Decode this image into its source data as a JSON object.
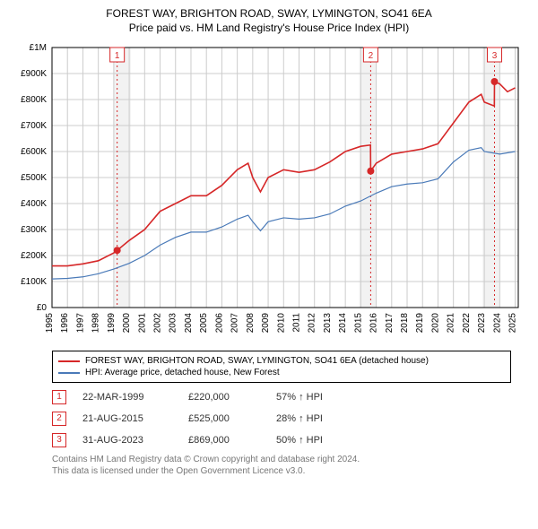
{
  "title_line1": "FOREST WAY, BRIGHTON ROAD, SWAY, LYMINGTON, SO41 6EA",
  "title_line2": "Price paid vs. HM Land Registry's House Price Index (HPI)",
  "title_fontsize": 12,
  "chart": {
    "background_color": "#ffffff",
    "grid_color": "#cccccc",
    "band_color": "#e8e8e8",
    "band_opacity": 0.55,
    "bands_x": [
      [
        1999.0,
        2000.1
      ],
      [
        2014.9,
        2016.0
      ],
      [
        2022.9,
        2024.0
      ]
    ],
    "axis_color": "#000000",
    "y_axis_label_prefix": "£",
    "y_ticks": [
      0,
      100000,
      200000,
      300000,
      400000,
      500000,
      600000,
      700000,
      800000,
      900000,
      1000000
    ],
    "y_tick_labels": [
      "£0",
      "£100K",
      "£200K",
      "£300K",
      "£400K",
      "£500K",
      "£600K",
      "£700K",
      "£800K",
      "£900K",
      "£1M"
    ],
    "ylim": [
      0,
      1000000
    ],
    "x_ticks": [
      1995,
      1996,
      1997,
      1998,
      1999,
      2000,
      2001,
      2002,
      2003,
      2004,
      2005,
      2006,
      2007,
      2008,
      2009,
      2010,
      2011,
      2012,
      2013,
      2014,
      2015,
      2016,
      2017,
      2018,
      2019,
      2020,
      2021,
      2022,
      2023,
      2024,
      2025
    ],
    "xlim": [
      1995,
      2025.2
    ],
    "series": [
      {
        "name": "price_paid",
        "label": "FOREST WAY, BRIGHTON ROAD, SWAY, LYMINGTON, SO41 6EA (detached house)",
        "color": "#d62728",
        "width": 1.6,
        "data": [
          [
            1995,
            160000
          ],
          [
            1996,
            160000
          ],
          [
            1997,
            168000
          ],
          [
            1998,
            180000
          ],
          [
            1999,
            210000
          ],
          [
            1999.22,
            220000
          ],
          [
            2000,
            258000
          ],
          [
            2001,
            300000
          ],
          [
            2002,
            370000
          ],
          [
            2003,
            400000
          ],
          [
            2004,
            430000
          ],
          [
            2005,
            430000
          ],
          [
            2006,
            470000
          ],
          [
            2007,
            530000
          ],
          [
            2007.7,
            555000
          ],
          [
            2008,
            500000
          ],
          [
            2008.5,
            445000
          ],
          [
            2009,
            500000
          ],
          [
            2010,
            530000
          ],
          [
            2011,
            520000
          ],
          [
            2012,
            530000
          ],
          [
            2013,
            560000
          ],
          [
            2014,
            600000
          ],
          [
            2015,
            620000
          ],
          [
            2015.63,
            625000
          ],
          [
            2015.64,
            525000
          ],
          [
            2016,
            555000
          ],
          [
            2017,
            590000
          ],
          [
            2018,
            600000
          ],
          [
            2019,
            610000
          ],
          [
            2020,
            630000
          ],
          [
            2021,
            710000
          ],
          [
            2022,
            790000
          ],
          [
            2022.8,
            820000
          ],
          [
            2023,
            790000
          ],
          [
            2023.65,
            775000
          ],
          [
            2023.66,
            869000
          ],
          [
            2024,
            860000
          ],
          [
            2024.5,
            830000
          ],
          [
            2025,
            845000
          ]
        ]
      },
      {
        "name": "hpi",
        "label": "HPI: Average price, detached house, New Forest",
        "color": "#4a7ab8",
        "width": 1.2,
        "data": [
          [
            1995,
            110000
          ],
          [
            1996,
            112000
          ],
          [
            1997,
            118000
          ],
          [
            1998,
            130000
          ],
          [
            1999,
            148000
          ],
          [
            2000,
            170000
          ],
          [
            2001,
            200000
          ],
          [
            2002,
            240000
          ],
          [
            2003,
            270000
          ],
          [
            2004,
            290000
          ],
          [
            2005,
            290000
          ],
          [
            2006,
            310000
          ],
          [
            2007,
            340000
          ],
          [
            2007.7,
            355000
          ],
          [
            2008,
            330000
          ],
          [
            2008.5,
            295000
          ],
          [
            2009,
            330000
          ],
          [
            2010,
            345000
          ],
          [
            2011,
            340000
          ],
          [
            2012,
            345000
          ],
          [
            2013,
            360000
          ],
          [
            2014,
            390000
          ],
          [
            2015,
            410000
          ],
          [
            2016,
            440000
          ],
          [
            2017,
            465000
          ],
          [
            2018,
            475000
          ],
          [
            2019,
            480000
          ],
          [
            2020,
            495000
          ],
          [
            2021,
            560000
          ],
          [
            2022,
            605000
          ],
          [
            2022.8,
            615000
          ],
          [
            2023,
            600000
          ],
          [
            2024,
            590000
          ],
          [
            2025,
            600000
          ]
        ]
      }
    ],
    "sale_markers": [
      {
        "n": "1",
        "x": 1999.22,
        "y": 220000
      },
      {
        "n": "2",
        "x": 2015.64,
        "y": 525000
      },
      {
        "n": "3",
        "x": 2023.66,
        "y": 869000
      }
    ],
    "marker_vline_color": "#d62728",
    "marker_vline_dash": "2,3",
    "marker_badge_border": "#d62728",
    "marker_badge_text_color": "#d62728",
    "marker_badge_fill": "#ffffff",
    "marker_dot_fill": "#d62728",
    "marker_dot_radius": 4,
    "tick_label_fontsize": 10
  },
  "legend": {
    "border_color": "#000000",
    "font_size": 10,
    "rows": [
      {
        "color": "#d62728",
        "label": "FOREST WAY, BRIGHTON ROAD, SWAY, LYMINGTON, SO41 6EA (detached house)"
      },
      {
        "color": "#4a7ab8",
        "label": "HPI: Average price, detached house, New Forest"
      }
    ]
  },
  "sales": {
    "badge_border": "#d62728",
    "badge_text": "#d62728",
    "font_size": 11,
    "rows": [
      {
        "n": "1",
        "date": "22-MAR-1999",
        "price": "£220,000",
        "delta": "57% ↑ HPI"
      },
      {
        "n": "2",
        "date": "21-AUG-2015",
        "price": "£525,000",
        "delta": "28% ↑ HPI"
      },
      {
        "n": "3",
        "date": "31-AUG-2023",
        "price": "£869,000",
        "delta": "50% ↑ HPI"
      }
    ]
  },
  "footnote_line1": "Contains HM Land Registry data © Crown copyright and database right 2024.",
  "footnote_line2": "This data is licensed under the Open Government Licence v3.0.",
  "footnote_color": "#888888",
  "footnote_fontsize": 10
}
